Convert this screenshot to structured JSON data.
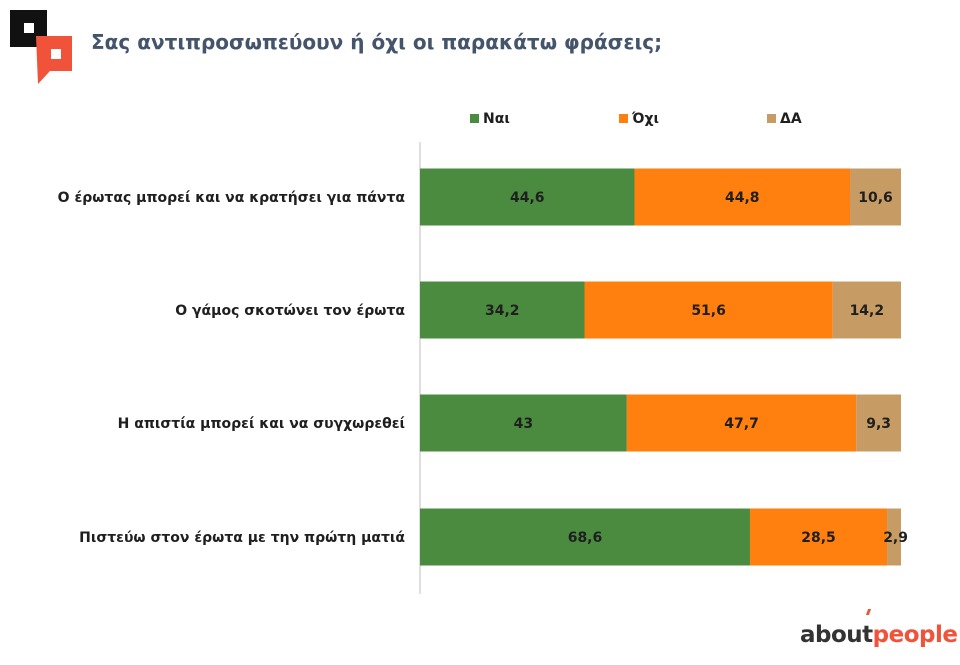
{
  "title": "Σας αντιπροσωπεύουν ή όχι οι παρακάτω φράσεις;",
  "brand": {
    "part1": "about",
    "part2": "people"
  },
  "colors": {
    "title": "#44546A",
    "brand_orange": "#F0533A",
    "logo_dark": "#111111"
  },
  "chart_data": {
    "type": "bar",
    "orientation": "horizontal",
    "stacked": true,
    "title": "",
    "categories": [
      "Ο έρωτας μπορεί και να κρατήσει για πάντα",
      "Ο γάμος σκοτώνει τον έρωτα",
      "Η απιστία μπορεί και να συγχωρεθεί",
      "Πιστεύω στον έρωτα με την πρώτη ματιά"
    ],
    "series": [
      {
        "name": "Ναι",
        "color": "#4A8B3F",
        "values": [
          44.6,
          34.2,
          43,
          68.6
        ],
        "labels": [
          "44,6",
          "34,2",
          "43",
          "68,6"
        ]
      },
      {
        "name": "Όχι",
        "color": "#FF7F0F",
        "values": [
          44.8,
          51.6,
          47.7,
          28.5
        ],
        "labels": [
          "44,8",
          "51,6",
          "47,7",
          "28,5"
        ]
      },
      {
        "name": "ΔΑ",
        "color": "#C69C64",
        "values": [
          10.6,
          14.2,
          9.3,
          2.9
        ],
        "labels": [
          "10,6",
          "14,2",
          "9,3",
          "2,9"
        ]
      }
    ],
    "xlim": [
      0,
      100
    ],
    "grid": false,
    "legend_position": "top"
  }
}
